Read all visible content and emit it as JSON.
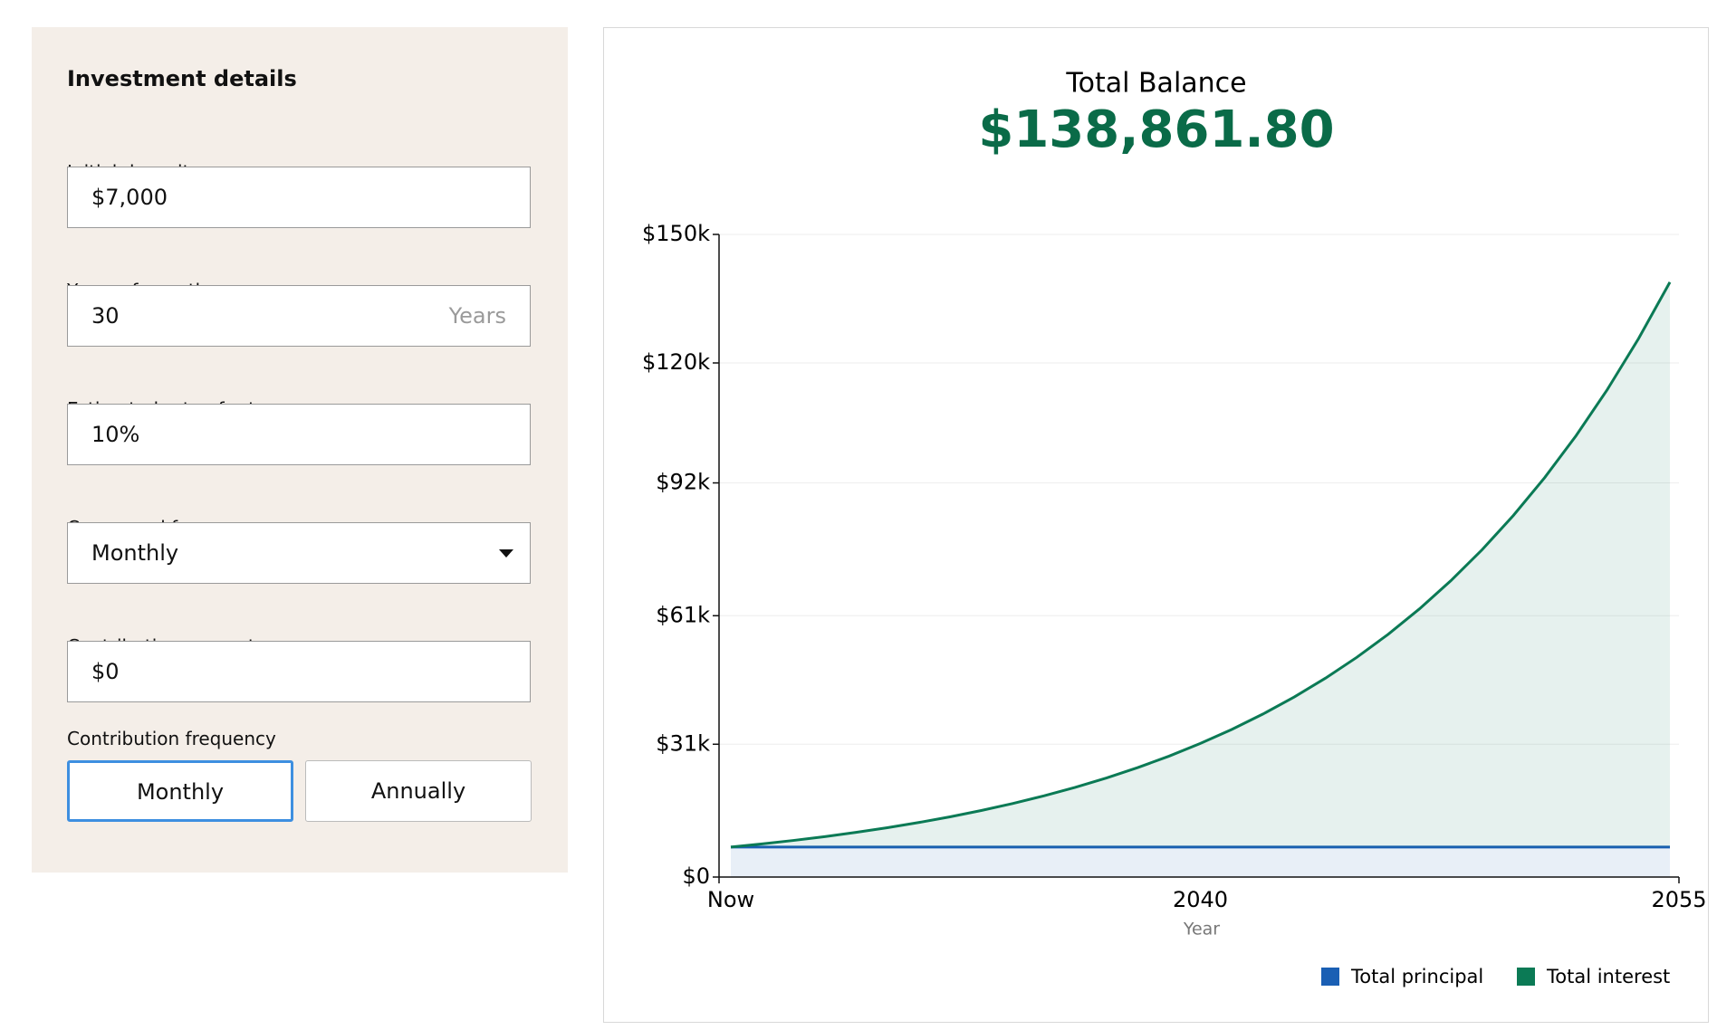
{
  "panel": {
    "title": "Investment details",
    "fields": [
      {
        "label": "Initial deposit",
        "value": "$7,000"
      },
      {
        "label": "Years of growth",
        "value": "30",
        "suffix": "Years"
      },
      {
        "label": "Estimated rate of return",
        "value": "10%"
      },
      {
        "label": "Compound frequency",
        "value": "Monthly"
      },
      {
        "label": "Contribution amount",
        "value": "$0"
      }
    ],
    "contribution_frequency": {
      "label": "Contribution frequency",
      "options": [
        "Monthly",
        "Annually"
      ]
    }
  },
  "chart_data": {
    "type": "area",
    "title": "Total Balance",
    "subtitle": "$138,861.80",
    "x_label": "Year",
    "categories": [
      "Now",
      null,
      null,
      null,
      null,
      null,
      null,
      null,
      null,
      null,
      null,
      null,
      null,
      null,
      null,
      "2040",
      null,
      null,
      null,
      null,
      null,
      null,
      null,
      null,
      null,
      null,
      null,
      null,
      null,
      null,
      "2055"
    ],
    "series": [
      {
        "name": "Total principal",
        "color": "#1a5fb4",
        "values": [
          7000,
          7000,
          7000,
          7000,
          7000,
          7000,
          7000,
          7000,
          7000,
          7000,
          7000,
          7000,
          7000,
          7000,
          7000,
          7000,
          7000,
          7000,
          7000,
          7000,
          7000,
          7000,
          7000,
          7000,
          7000,
          7000,
          7000,
          7000,
          7000,
          7000,
          7000
        ]
      },
      {
        "name": "Total interest",
        "color": "#0b7a55",
        "values": [
          0,
          733,
          1543,
          2437,
          3425,
          4517,
          5723,
          7055,
          8527,
          10153,
          11949,
          13933,
          16125,
          18547,
          21222,
          24177,
          27442,
          31048,
          35033,
          39434,
          44296,
          49668,
          55601,
          62156,
          69398,
          77398,
          86235,
          95998,
          106783,
          118697,
          131862
        ]
      }
    ],
    "stacked": true,
    "ylim": [
      0,
      150000
    ],
    "yticks": [
      {
        "value": 0,
        "label": "$0"
      },
      {
        "value": 31000,
        "label": "$31k"
      },
      {
        "value": 61000,
        "label": "$61k"
      },
      {
        "value": 92000,
        "label": "$92k"
      },
      {
        "value": 120000,
        "label": "$120k"
      },
      {
        "value": 150000,
        "label": "$150k"
      }
    ],
    "grid": true,
    "legend": "bottom-right"
  }
}
